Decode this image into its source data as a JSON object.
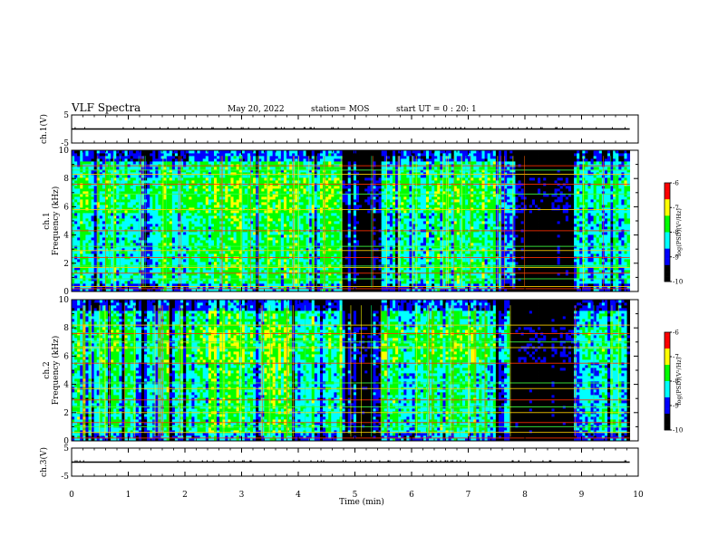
{
  "header": {
    "title": "VLF Spectra",
    "date": "May 20, 2022",
    "station": "station= MOS",
    "start": "start  UT =   0 : 20: 1"
  },
  "colors": {
    "colormap": [
      "#000000",
      "#0000ff",
      "#00ffff",
      "#00ff00",
      "#ffff00",
      "#ff0000",
      "#ffffff"
    ],
    "trace": "#000000",
    "axes": "#000000"
  },
  "chart_data": [
    {
      "type": "line",
      "ylabel": "ch.1(V)",
      "ylim": [
        -5,
        5
      ],
      "yticks": [
        "5",
        "-5"
      ],
      "series": [
        {
          "x": [
            0,
            9.85
          ],
          "values": [
            0,
            0
          ]
        }
      ]
    },
    {
      "type": "heatmap",
      "ylabel": "ch.1\nFrequency  (kHz)",
      "ylim": [
        0,
        10
      ],
      "yticks": [
        "0",
        "2",
        "4",
        "6",
        "8",
        "10"
      ],
      "colorbar": {
        "label": "log(PSD)(V²/Hz)",
        "ticks": [
          "-6",
          "-7",
          "-8",
          "-9",
          "-10"
        ],
        "range": [
          -10,
          -6
        ]
      },
      "features": {
        "narrowband_lines_khz": [
          0.2,
          0.35,
          0.9,
          1.3,
          1.7,
          1.8,
          2.4,
          2.9,
          3.2,
          4.3,
          5.8,
          6.9,
          7.6,
          8.3,
          8.6,
          8.9
        ],
        "quiet_intervals_min": [
          [
            5.0,
            5.25
          ],
          [
            7.85,
            8.85
          ]
        ],
        "data_end_min": 9.85
      }
    },
    {
      "type": "heatmap",
      "ylabel": "ch.2\nFrequency  (kHz)",
      "ylim": [
        0,
        10
      ],
      "yticks": [
        "0",
        "2",
        "4",
        "6",
        "8",
        "10"
      ],
      "colorbar": {
        "label": "log(PSD)(V²/Hz)",
        "ticks": [
          "-6",
          "-7",
          "-8",
          "-9",
          "-10"
        ],
        "range": [
          -10,
          -6
        ]
      },
      "features": {
        "narrowband_lines_khz": [
          0.2,
          0.6,
          1.0,
          1.3,
          2.0,
          2.4,
          2.9,
          3.7,
          4.1,
          5.5,
          6.6,
          7.0,
          7.6,
          8.2
        ],
        "quiet_intervals_min": [
          [
            5.0,
            5.3
          ],
          [
            7.75,
            8.85
          ]
        ],
        "data_end_min": 9.85
      }
    },
    {
      "type": "line",
      "ylabel": "ch.3(V)",
      "ylim": [
        -5,
        5
      ],
      "yticks": [
        "5",
        "-5"
      ],
      "series": [
        {
          "x": [
            0,
            9.85
          ],
          "values": [
            0,
            0
          ]
        }
      ]
    }
  ],
  "xaxis": {
    "label": "Time  (min)",
    "range": [
      0,
      10
    ],
    "ticks": [
      "0",
      "1",
      "2",
      "3",
      "4",
      "5",
      "6",
      "7",
      "8",
      "9",
      "10"
    ]
  }
}
